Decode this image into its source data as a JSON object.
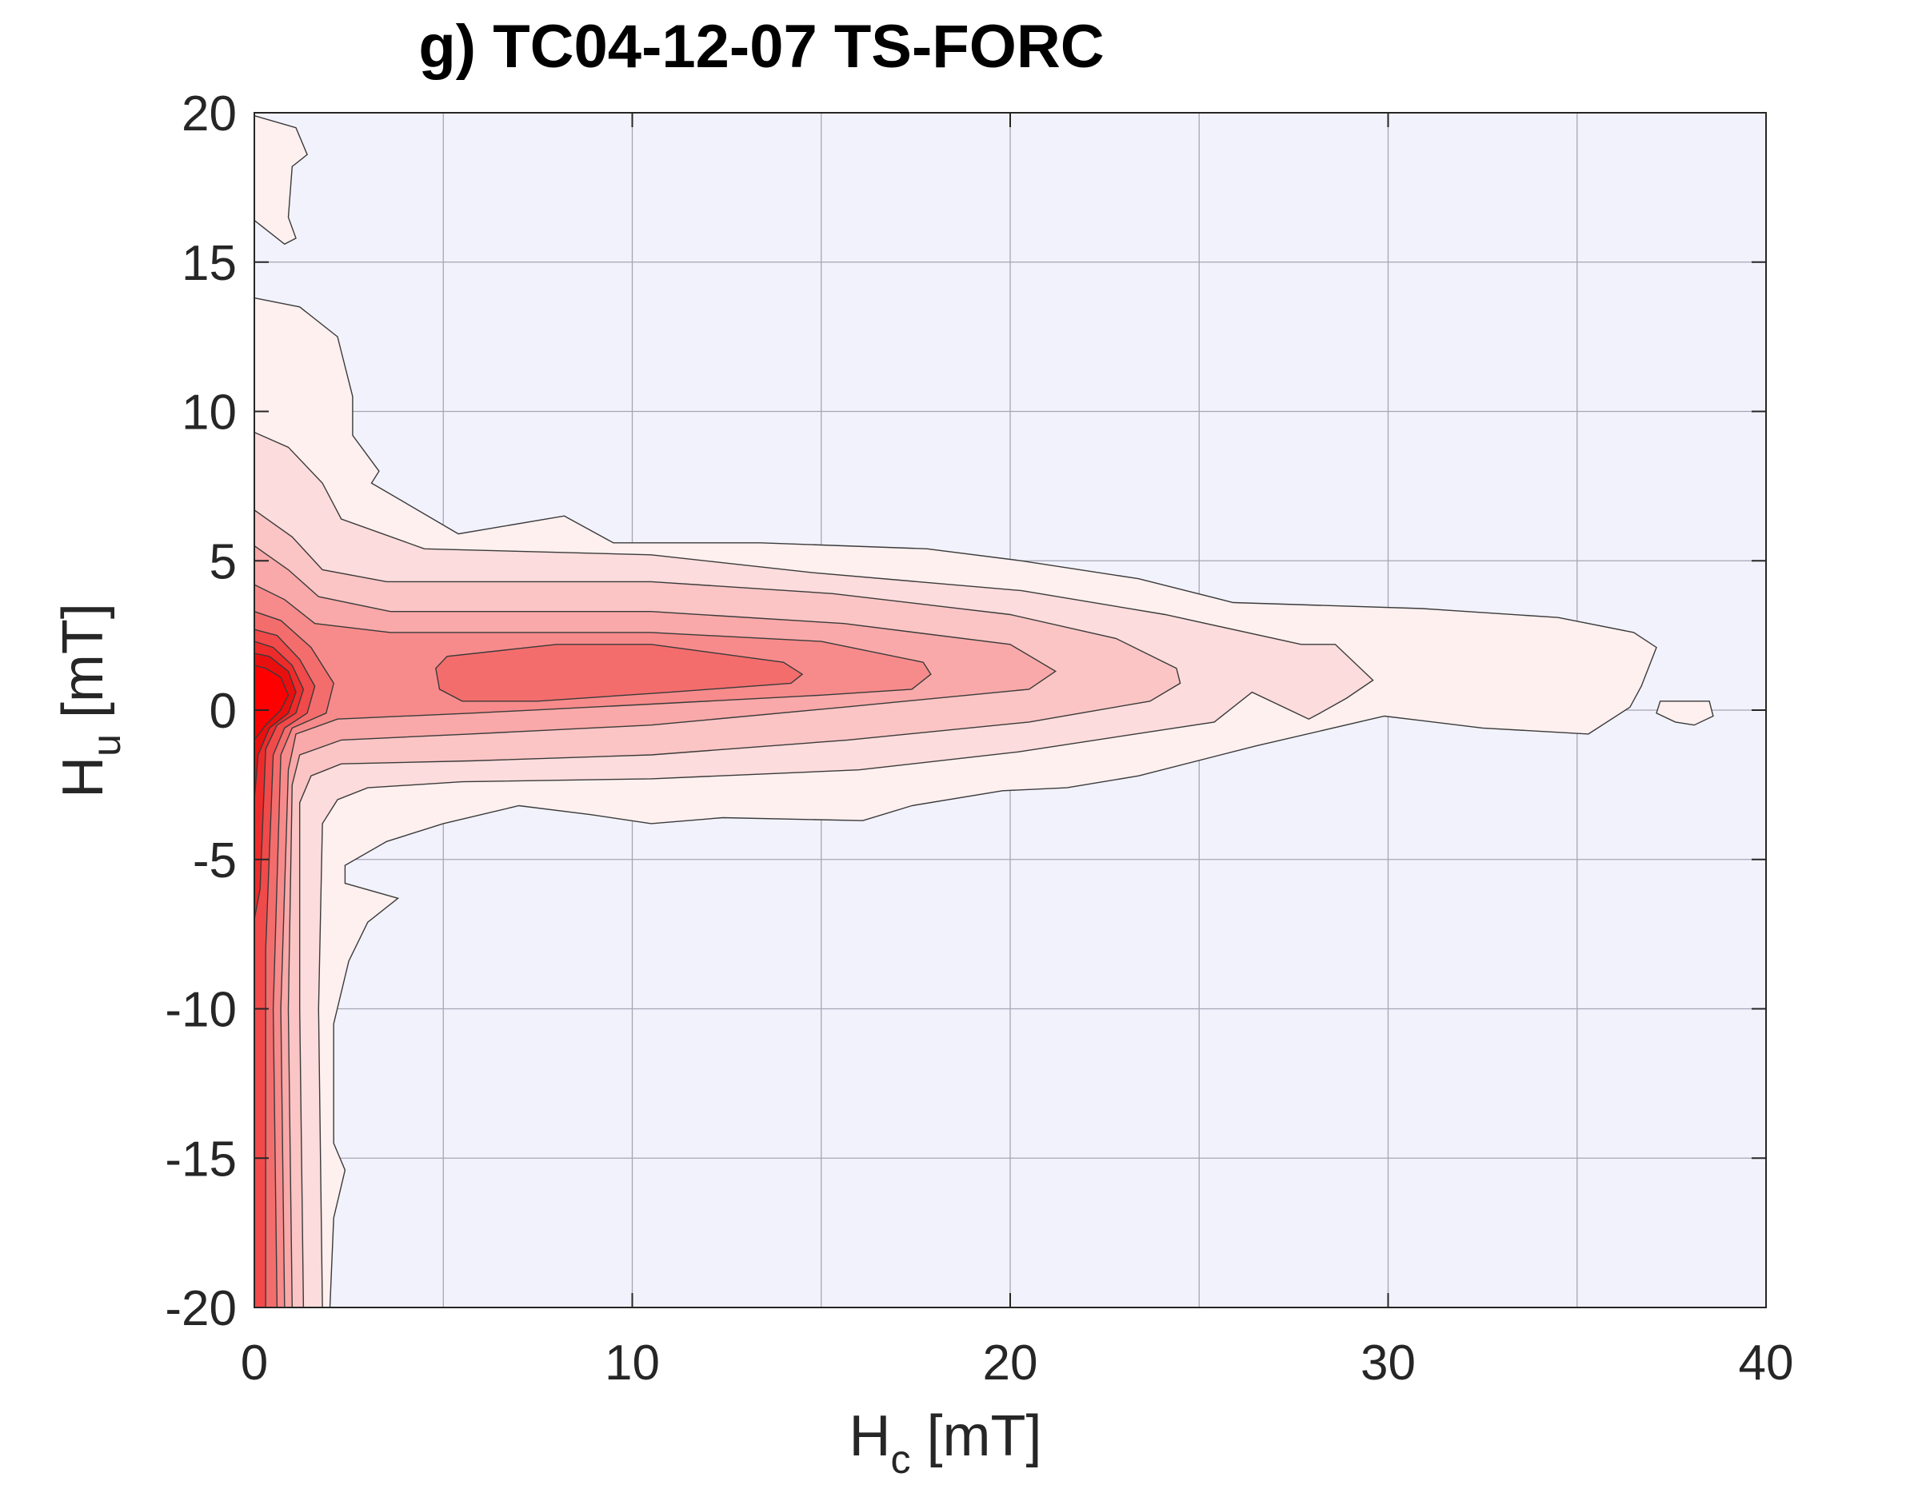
{
  "chart_data": {
    "type": "contour",
    "title": "g) TC04-12-07 TS-FORC",
    "xlabel": {
      "main": "H",
      "sub": "c",
      "unit": " [mT]"
    },
    "ylabel": {
      "main": "H",
      "sub": "u",
      "unit": " [mT]"
    },
    "xlim": [
      0,
      40
    ],
    "ylim": [
      -20,
      20
    ],
    "xticks": [
      0,
      10,
      20,
      30,
      40
    ],
    "yticks": [
      -20,
      -15,
      -10,
      -5,
      0,
      5,
      10,
      15,
      20
    ],
    "xtick_labels": [
      "0",
      "10",
      "20",
      "30",
      "40"
    ],
    "ytick_labels": [
      "-20",
      "-15",
      "-10",
      "-5",
      "0",
      "5",
      "10",
      "15",
      "20"
    ],
    "xgrid": [
      5,
      10,
      15,
      20,
      25,
      30,
      35
    ],
    "ygrid": [
      -15,
      -10,
      -5,
      0,
      5,
      10,
      15
    ],
    "grid": true,
    "colors": {
      "background": "#f2f2fd",
      "levels": [
        "#fdf0ef",
        "#fcdcdc",
        "#fbc5c5",
        "#f9a9a9",
        "#f78b8b",
        "#f46d6d",
        "#f14a4a",
        "#ee2b2b",
        "#ea0f0f",
        "#ff0000"
      ]
    },
    "contours": [
      {
        "level": 1,
        "regions": [
          [
            [
              0,
              19.9
            ],
            [
              1.1,
              19.5
            ],
            [
              1.4,
              18.6
            ],
            [
              1.0,
              18.2
            ],
            [
              0.9,
              16.5
            ],
            [
              1.1,
              15.8
            ],
            [
              0.8,
              15.6
            ],
            [
              0.2,
              16.2
            ],
            [
              0,
              16.4
            ]
          ],
          [
            [
              0,
              13.8
            ],
            [
              1.2,
              13.5
            ],
            [
              2.2,
              12.5
            ],
            [
              2.6,
              10.5
            ],
            [
              2.6,
              9.2
            ],
            [
              3.3,
              8.0
            ],
            [
              3.1,
              7.6
            ],
            [
              5.4,
              5.9
            ],
            [
              8.2,
              6.5
            ],
            [
              9.5,
              5.6
            ],
            [
              13.4,
              5.6
            ],
            [
              17.8,
              5.4
            ],
            [
              20.3,
              5.0
            ],
            [
              23.4,
              4.4
            ],
            [
              25.9,
              3.6
            ],
            [
              30.9,
              3.4
            ],
            [
              34.5,
              3.1
            ],
            [
              36.5,
              2.6
            ],
            [
              37.1,
              2.1
            ],
            [
              36.7,
              0.8
            ],
            [
              36.4,
              0.1
            ],
            [
              35.3,
              -0.8
            ],
            [
              32.5,
              -0.6
            ],
            [
              29.9,
              -0.2
            ],
            [
              26.5,
              -1.2
            ],
            [
              23.4,
              -2.2
            ],
            [
              21.5,
              -2.6
            ],
            [
              19.8,
              -2.7
            ],
            [
              17.4,
              -3.2
            ],
            [
              16.1,
              -3.7
            ],
            [
              12.4,
              -3.6
            ],
            [
              10.5,
              -3.8
            ],
            [
              8.9,
              -3.5
            ],
            [
              7.0,
              -3.2
            ],
            [
              5.0,
              -3.8
            ],
            [
              3.5,
              -4.4
            ],
            [
              2.4,
              -5.2
            ],
            [
              2.4,
              -5.8
            ],
            [
              3.8,
              -6.3
            ],
            [
              3.0,
              -7.1
            ],
            [
              2.5,
              -8.4
            ],
            [
              2.1,
              -10.5
            ],
            [
              2.1,
              -14.5
            ],
            [
              2.4,
              -15.4
            ],
            [
              2.1,
              -17.0
            ],
            [
              2.0,
              -20
            ],
            [
              0,
              -20
            ]
          ],
          [
            [
              37.2,
              0.3
            ],
            [
              38.5,
              0.3
            ],
            [
              38.6,
              -0.2
            ],
            [
              38.1,
              -0.5
            ],
            [
              37.6,
              -0.4
            ],
            [
              37.1,
              -0.1
            ]
          ]
        ]
      },
      {
        "level": 2,
        "regions": [
          [
            [
              0,
              9.3
            ],
            [
              0.9,
              8.8
            ],
            [
              1.8,
              7.6
            ],
            [
              2.3,
              6.4
            ],
            [
              4.5,
              5.4
            ],
            [
              10.5,
              5.2
            ],
            [
              14.8,
              4.6
            ],
            [
              20.3,
              4.0
            ],
            [
              24.1,
              3.2
            ],
            [
              27.7,
              2.2
            ],
            [
              28.6,
              2.2
            ],
            [
              29.6,
              1.0
            ],
            [
              28.9,
              0.4
            ],
            [
              28.2,
              -0.1
            ],
            [
              27.9,
              -0.3
            ],
            [
              26.4,
              0.6
            ],
            [
              25.4,
              -0.4
            ],
            [
              20.2,
              -1.4
            ],
            [
              16.0,
              -2.0
            ],
            [
              10.5,
              -2.3
            ],
            [
              5.5,
              -2.4
            ],
            [
              3.0,
              -2.6
            ],
            [
              2.2,
              -3.0
            ],
            [
              1.8,
              -3.8
            ],
            [
              1.7,
              -10.0
            ],
            [
              1.8,
              -20
            ],
            [
              0,
              -20
            ]
          ]
        ]
      },
      {
        "level": 3,
        "regions": [
          [
            [
              0,
              6.7
            ],
            [
              1.0,
              5.8
            ],
            [
              1.8,
              4.7
            ],
            [
              3.5,
              4.3
            ],
            [
              10.5,
              4.3
            ],
            [
              15.3,
              3.9
            ],
            [
              20.0,
              3.2
            ],
            [
              22.8,
              2.4
            ],
            [
              24.4,
              1.4
            ],
            [
              24.5,
              0.9
            ],
            [
              23.7,
              0.3
            ],
            [
              20.5,
              -0.4
            ],
            [
              15.7,
              -1.0
            ],
            [
              10.5,
              -1.5
            ],
            [
              5.7,
              -1.7
            ],
            [
              2.3,
              -1.8
            ],
            [
              1.5,
              -2.2
            ],
            [
              1.2,
              -3.1
            ],
            [
              1.2,
              -10
            ],
            [
              1.3,
              -20
            ],
            [
              0,
              -20
            ]
          ]
        ]
      },
      {
        "level": 4,
        "regions": [
          [
            [
              0,
              5.5
            ],
            [
              0.9,
              4.7
            ],
            [
              1.7,
              3.8
            ],
            [
              3.6,
              3.3
            ],
            [
              10.5,
              3.3
            ],
            [
              15.6,
              2.9
            ],
            [
              20.0,
              2.2
            ],
            [
              21.2,
              1.3
            ],
            [
              20.5,
              0.7
            ],
            [
              15.6,
              0.1
            ],
            [
              10.5,
              -0.5
            ],
            [
              5.7,
              -0.8
            ],
            [
              2.3,
              -1.0
            ],
            [
              1.2,
              -1.5
            ],
            [
              1.0,
              -2.5
            ],
            [
              0.9,
              -10
            ],
            [
              1.0,
              -20
            ],
            [
              0,
              -20
            ]
          ]
        ]
      },
      {
        "level": 5,
        "regions": [
          [
            [
              0,
              4.2
            ],
            [
              0.8,
              3.7
            ],
            [
              1.6,
              2.9
            ],
            [
              3.6,
              2.6
            ],
            [
              10.5,
              2.6
            ],
            [
              15.0,
              2.3
            ],
            [
              17.7,
              1.6
            ],
            [
              17.9,
              1.2
            ],
            [
              17.4,
              0.7
            ],
            [
              15.0,
              0.5
            ],
            [
              10.5,
              0.2
            ],
            [
              5.8,
              -0.1
            ],
            [
              2.2,
              -0.3
            ],
            [
              1.1,
              -0.8
            ],
            [
              0.9,
              -2.0
            ],
            [
              0.7,
              -10
            ],
            [
              0.8,
              -20
            ],
            [
              0,
              -20
            ]
          ]
        ]
      },
      {
        "level": 6,
        "regions": [
          [
            [
              0,
              3.3
            ],
            [
              0.7,
              3.0
            ],
            [
              1.5,
              2.1
            ],
            [
              2.1,
              0.9
            ],
            [
              1.9,
              -0.1
            ],
            [
              1.0,
              -0.6
            ],
            [
              0.7,
              -1.5
            ],
            [
              0.5,
              -10
            ],
            [
              0.6,
              -20
            ],
            [
              0,
              -20
            ]
          ],
          [
            [
              4.8,
              1.4
            ],
            [
              5.1,
              1.8
            ],
            [
              8.0,
              2.2
            ],
            [
              10.5,
              2.2
            ],
            [
              14.0,
              1.6
            ],
            [
              14.5,
              1.2
            ],
            [
              14.2,
              0.9
            ],
            [
              11.0,
              0.6
            ],
            [
              7.5,
              0.3
            ],
            [
              5.5,
              0.3
            ],
            [
              4.9,
              0.7
            ]
          ]
        ]
      },
      {
        "level": 7,
        "regions": [
          [
            [
              0,
              2.7
            ],
            [
              0.6,
              2.5
            ],
            [
              1.2,
              1.7
            ],
            [
              1.6,
              0.8
            ],
            [
              1.4,
              -0.1
            ],
            [
              0.8,
              -0.6
            ],
            [
              0.5,
              -1.5
            ],
            [
              0.3,
              -8
            ],
            [
              0.3,
              -20
            ],
            [
              0,
              -20
            ]
          ]
        ]
      },
      {
        "level": 8,
        "regions": [
          [
            [
              0,
              2.3
            ],
            [
              0.5,
              2.1
            ],
            [
              1.0,
              1.5
            ],
            [
              1.3,
              0.7
            ],
            [
              1.1,
              -0.1
            ],
            [
              0.6,
              -0.5
            ],
            [
              0.3,
              -1.3
            ],
            [
              0.15,
              -6
            ],
            [
              0,
              -7
            ]
          ]
        ]
      },
      {
        "level": 9,
        "regions": [
          [
            [
              0,
              1.9
            ],
            [
              0.4,
              1.8
            ],
            [
              0.9,
              1.3
            ],
            [
              1.1,
              0.6
            ],
            [
              0.9,
              -0.1
            ],
            [
              0.4,
              -0.6
            ],
            [
              0.1,
              -1.5
            ],
            [
              0,
              -3
            ]
          ]
        ]
      },
      {
        "level": 10,
        "regions": [
          [
            [
              0,
              1.5
            ],
            [
              0.3,
              1.4
            ],
            [
              0.7,
              1.1
            ],
            [
              0.9,
              0.5
            ],
            [
              0.7,
              0.0
            ],
            [
              0.3,
              -0.5
            ],
            [
              0,
              -1.0
            ]
          ]
        ]
      }
    ]
  }
}
